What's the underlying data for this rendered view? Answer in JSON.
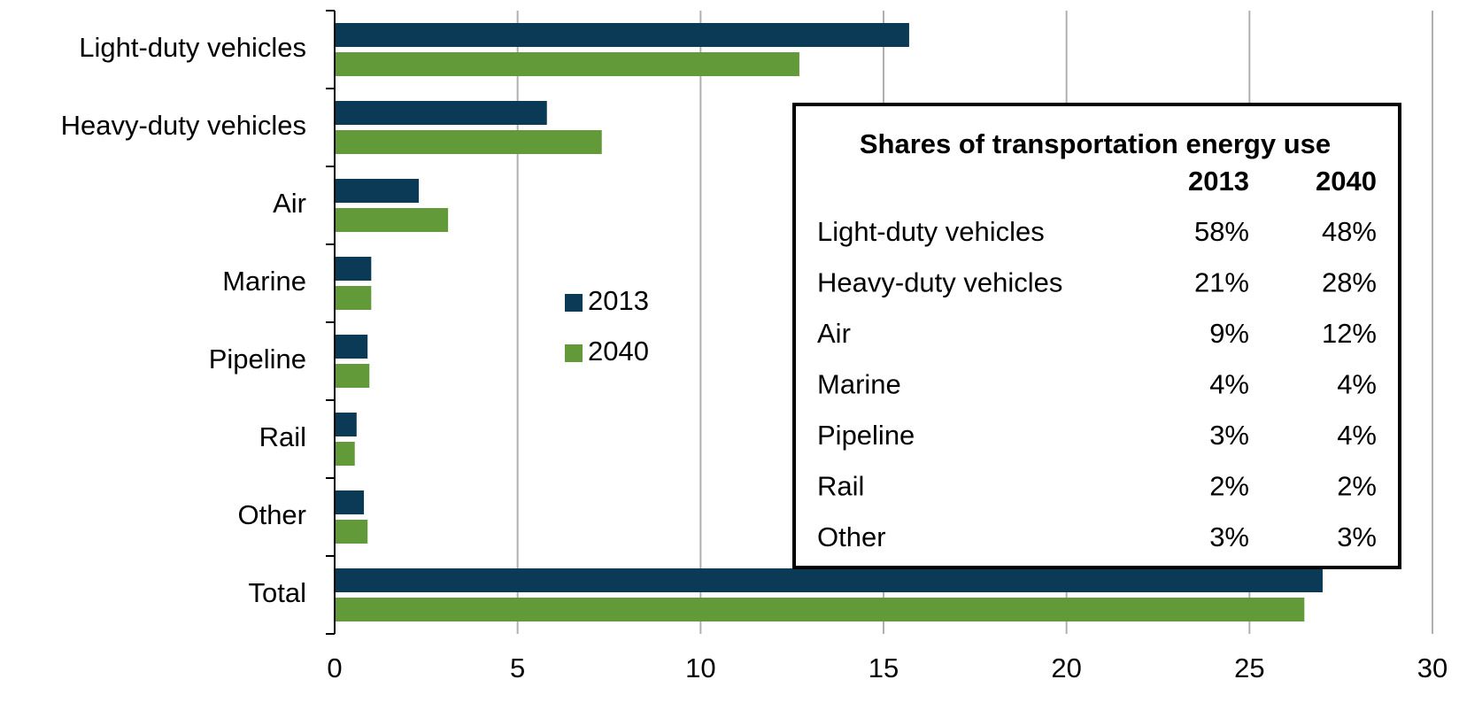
{
  "chart_data": {
    "type": "hbar",
    "categories": [
      "Light-duty vehicles",
      "Heavy-duty vehicles",
      "Air",
      "Marine",
      "Pipeline",
      "Rail",
      "Other",
      "Total"
    ],
    "series": [
      {
        "name": "2013",
        "color": "#0b3a56",
        "values": [
          15.7,
          5.8,
          2.3,
          1.0,
          0.9,
          0.6,
          0.8,
          27.0
        ]
      },
      {
        "name": "2040",
        "color": "#629a3a",
        "values": [
          12.7,
          7.3,
          3.1,
          1.0,
          0.95,
          0.55,
          0.9,
          26.5
        ]
      }
    ],
    "xlim": [
      0,
      30
    ],
    "xticks": [
      0,
      5,
      10,
      15,
      20,
      25,
      30
    ],
    "grid": true,
    "table": {
      "title": "Shares of transportation energy use",
      "columns": [
        "2013",
        "2040"
      ],
      "rows": [
        [
          "Light-duty vehicles",
          "58%",
          "48%"
        ],
        [
          "Heavy-duty vehicles",
          "21%",
          "28%"
        ],
        [
          "Air",
          "9%",
          "12%"
        ],
        [
          "Marine",
          "4%",
          "4%"
        ],
        [
          "Pipeline",
          "3%",
          "4%"
        ],
        [
          "Rail",
          "2%",
          "2%"
        ],
        [
          "Other",
          "3%",
          "3%"
        ]
      ]
    }
  }
}
